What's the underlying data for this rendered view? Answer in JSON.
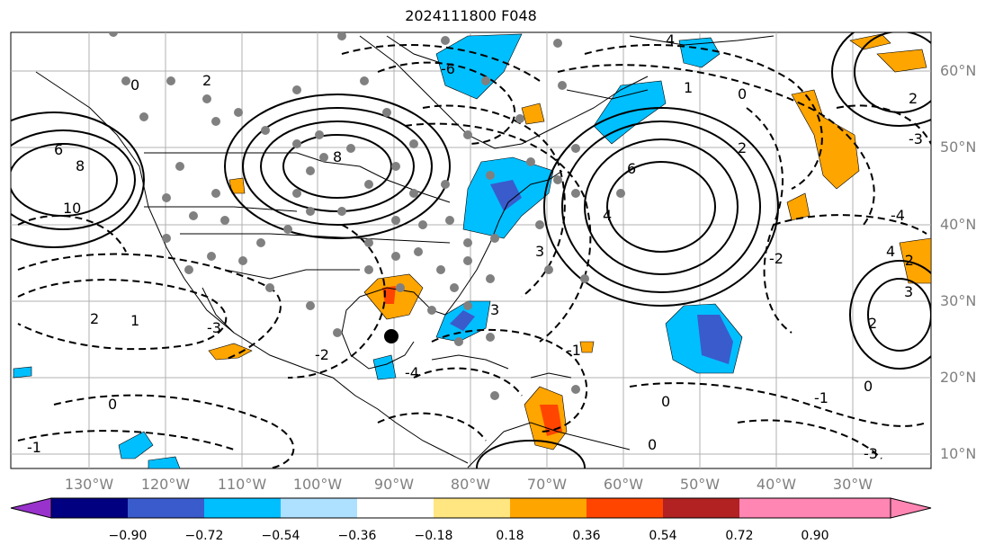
{
  "title": "2024111800 F048",
  "lon_labels": [
    "130°W",
    "120°W",
    "110°W",
    "100°W",
    "90°W",
    "80°W",
    "70°W",
    "60°W",
    "50°W",
    "40°W",
    "30°W"
  ],
  "lat_labels": [
    "60°N",
    "50°N",
    "40°N",
    "30°N",
    "20°N",
    "10°N"
  ],
  "colorbar": {
    "ticks": [
      "−0.90",
      "−0.72",
      "−0.54",
      "−0.36",
      "−0.18",
      "0.18",
      "0.36",
      "0.54",
      "0.72",
      "0.90"
    ],
    "colors": [
      "#9932cc",
      "#000080",
      "#3a5bcc",
      "#00bfff",
      "#aee0ff",
      "#ffffff",
      "#ffe680",
      "#ffa500",
      "#ff4500",
      "#b22222",
      "#ff85b3"
    ]
  },
  "contour_labels": [
    "6",
    "8",
    "10",
    "2",
    "1",
    "0",
    "-1",
    "-2",
    "-3",
    "-4",
    "-6",
    "3",
    "4",
    "2",
    "1",
    "0",
    "-2",
    "-3",
    "8",
    "6",
    "4",
    "2",
    "3",
    "2",
    "0",
    "-1",
    "0",
    "-2",
    "-3",
    "-4",
    "4",
    "3",
    "2",
    "0",
    "-1",
    "0"
  ],
  "colors": {
    "land_line": "#000000",
    "grid": "#b0b0b0",
    "station": "#808080",
    "pos_fill": "#ffa500",
    "neg_fill": "#00bfff"
  }
}
